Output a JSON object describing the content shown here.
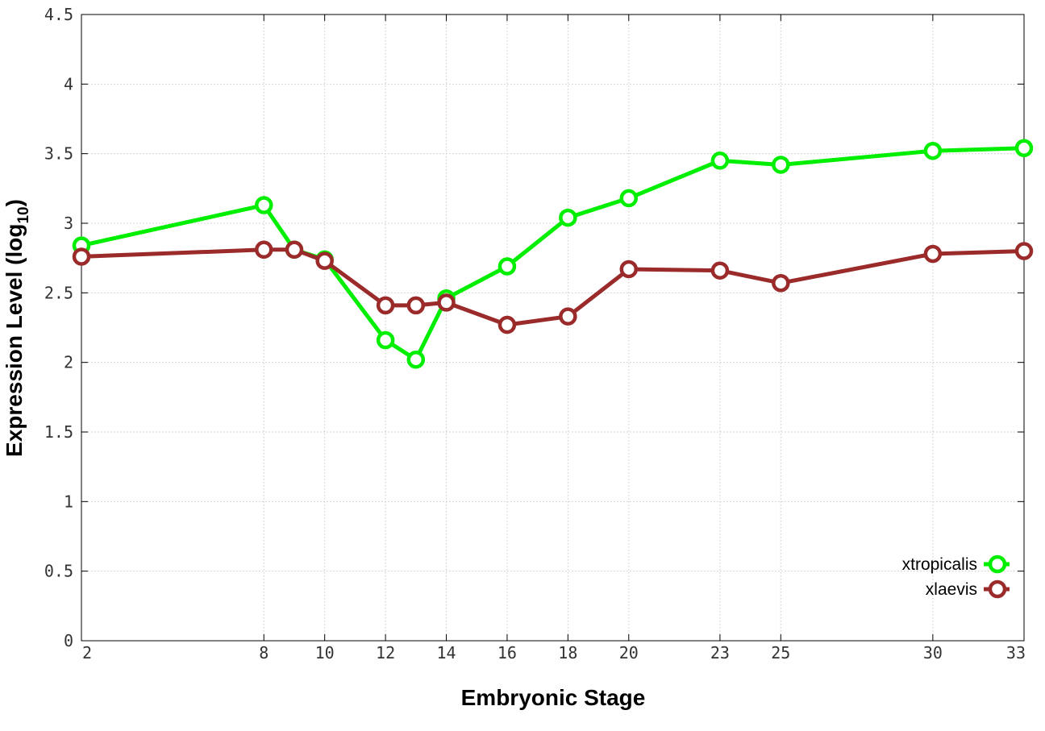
{
  "chart_data": {
    "type": "line",
    "title": "",
    "xlabel": "Embryonic Stage",
    "ylabel_main": "Expression Level (log",
    "ylabel_sub": "10",
    "ylabel_close": ")",
    "xlim": [
      2,
      33
    ],
    "ylim": [
      0,
      4.5
    ],
    "x_ticks": [
      2,
      8,
      10,
      12,
      14,
      16,
      18,
      20,
      23,
      25,
      30,
      33
    ],
    "y_ticks": [
      0,
      0.5,
      1,
      1.5,
      2,
      2.5,
      3,
      3.5,
      4,
      4.5
    ],
    "y_tick_labels": [
      "0",
      "0.5",
      "1",
      "1.5",
      "2",
      "2.5",
      "3",
      "3.5",
      "4",
      "4.5"
    ],
    "grid": true,
    "legend_position": "bottom-right",
    "series": [
      {
        "name": "xtropicalis",
        "color": "#00ee00",
        "marker": "open-circle",
        "x": [
          2,
          8,
          9,
          10,
          12,
          13,
          14,
          16,
          18,
          20,
          23,
          25,
          30,
          33
        ],
        "y": [
          2.84,
          3.13,
          2.81,
          2.74,
          2.16,
          2.02,
          2.46,
          2.69,
          3.04,
          3.18,
          3.45,
          3.42,
          3.52,
          3.54
        ]
      },
      {
        "name": "xlaevis",
        "color": "#9b2a2a",
        "marker": "open-circle",
        "x": [
          2,
          8,
          9,
          10,
          12,
          13,
          14,
          16,
          18,
          20,
          23,
          25,
          30,
          33
        ],
        "y": [
          2.76,
          2.81,
          2.81,
          2.73,
          2.41,
          2.41,
          2.43,
          2.27,
          2.33,
          2.67,
          2.66,
          2.57,
          2.78,
          2.8
        ]
      }
    ]
  }
}
